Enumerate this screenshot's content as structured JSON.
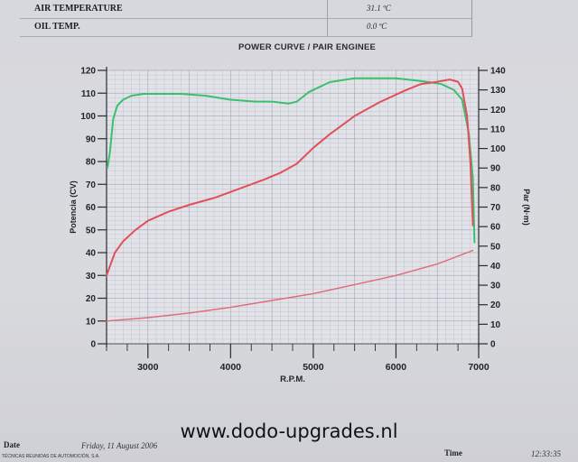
{
  "header_table": [
    {
      "label": "AIR TEMPERATURE",
      "value": "31.1 ºC"
    },
    {
      "label": "OIL TEMP.",
      "value": "0.0 ºC"
    }
  ],
  "footer": {
    "url": "www.dodo-upgrades.nl",
    "date_label": "Date",
    "date_value": "Friday, 11 August 2006",
    "company": "TÉCNICAS REUNIDAS DE AUTOMOCIÓN, S.A.",
    "time_label": "Time",
    "time_value": "12:33:35"
  },
  "colors": {
    "power": "#3bbf6e",
    "torque": "#e0505a",
    "loss": "#e06a78",
    "grid": "#9a9cae"
  },
  "chart_data": {
    "type": "line",
    "title": "POWER CURVE / PAIR ENGINEE",
    "xlabel": "R.P.M.",
    "ylabel_left": "Potencia (CV)",
    "ylabel_right": "Par (N·m)",
    "x_ticks": [
      3000,
      4000,
      5000,
      6000,
      7000
    ],
    "xlim": [
      2500,
      7000
    ],
    "y_left_ticks": [
      0,
      10,
      20,
      30,
      40,
      50,
      60,
      70,
      80,
      90,
      100,
      110,
      120
    ],
    "ylim_left": [
      0,
      120
    ],
    "y_right_ticks": [
      0,
      10,
      20,
      30,
      40,
      50,
      60,
      70,
      80,
      90,
      100,
      110,
      120,
      130,
      140
    ],
    "ylim_right": [
      0,
      140
    ],
    "grid": true,
    "series": [
      {
        "axis": "right",
        "color": "#3bbf6e",
        "x": [
          2510,
          2540,
          2580,
          2630,
          2700,
          2800,
          2950,
          3150,
          3400,
          3700,
          4000,
          4300,
          4500,
          4700,
          4800,
          4950,
          5200,
          5500,
          5800,
          6000,
          6200,
          6400,
          6550,
          6700,
          6800,
          6880,
          6930,
          6950
        ],
        "values": [
          90,
          98,
          115,
          122,
          125,
          127,
          128,
          128,
          128,
          127,
          125,
          124,
          124,
          123,
          124,
          129,
          134,
          136,
          136,
          136,
          135,
          134,
          133,
          130,
          125,
          108,
          85,
          52
        ]
      },
      {
        "axis": "left",
        "color": "#e0505a",
        "x": [
          2500,
          2550,
          2600,
          2700,
          2850,
          3000,
          3250,
          3500,
          3800,
          4100,
          4400,
          4600,
          4800,
          5000,
          5200,
          5500,
          5800,
          6100,
          6300,
          6500,
          6650,
          6750,
          6800,
          6860,
          6900,
          6930
        ],
        "values": [
          30,
          35,
          40,
          45,
          50,
          54,
          58,
          61,
          64,
          68,
          72,
          75,
          79,
          86,
          92,
          100,
          106,
          111,
          114,
          115,
          116,
          115,
          112,
          100,
          80,
          52
        ]
      },
      {
        "axis": "left",
        "color": "#e06a78",
        "x": [
          2500,
          3000,
          3500,
          4000,
          4500,
          5000,
          5500,
          6000,
          6500,
          6930
        ],
        "values": [
          10,
          11.5,
          13.5,
          16,
          19,
          22,
          26,
          30,
          35,
          41
        ]
      }
    ]
  }
}
